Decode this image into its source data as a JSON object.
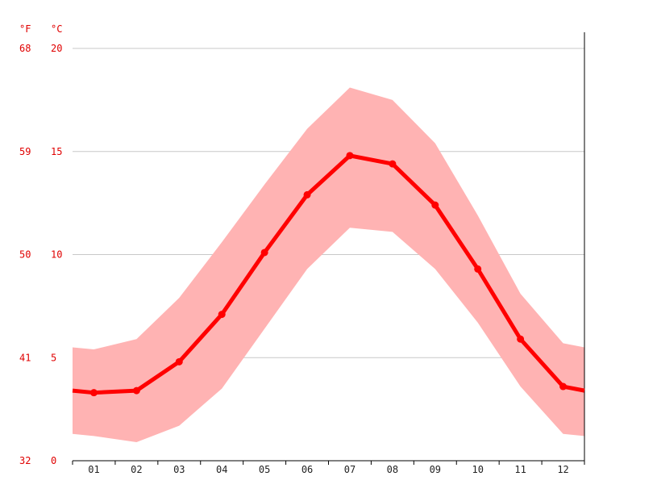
{
  "chart_data": {
    "type": "line",
    "title": "",
    "xlabel": "",
    "ylabel": "",
    "units_left": {
      "fahrenheit": "°F",
      "celsius": "°C"
    },
    "categories": [
      "01",
      "02",
      "03",
      "04",
      "05",
      "06",
      "07",
      "08",
      "09",
      "10",
      "11",
      "12"
    ],
    "ylim": [
      0,
      20
    ],
    "y_ticks_celsius": [
      "0",
      "5",
      "10",
      "15",
      "20"
    ],
    "y_ticks_fahrenheit": [
      "32",
      "41",
      "50",
      "59",
      "68"
    ],
    "grid": true,
    "legend": "none",
    "series": [
      {
        "type": "line",
        "color": "#ff0000",
        "values": [
          3.3,
          3.4,
          4.8,
          7.1,
          10.1,
          12.9,
          14.8,
          14.4,
          12.4,
          9.3,
          5.9,
          3.6
        ]
      },
      {
        "type": "band",
        "color": "#ffb3b3",
        "upper": [
          5.4,
          5.9,
          7.9,
          10.6,
          13.4,
          16.1,
          18.1,
          17.5,
          15.4,
          11.9,
          8.1,
          5.7
        ],
        "lower": [
          1.2,
          0.9,
          1.7,
          3.5,
          6.4,
          9.3,
          11.3,
          11.1,
          9.3,
          6.7,
          3.6,
          1.3
        ]
      }
    ],
    "edge_values": {
      "line_start": 3.4,
      "line_end": 3.4,
      "upper_start": 5.5,
      "upper_end": 5.5,
      "lower_start": 1.3,
      "lower_end": 1.2
    }
  }
}
